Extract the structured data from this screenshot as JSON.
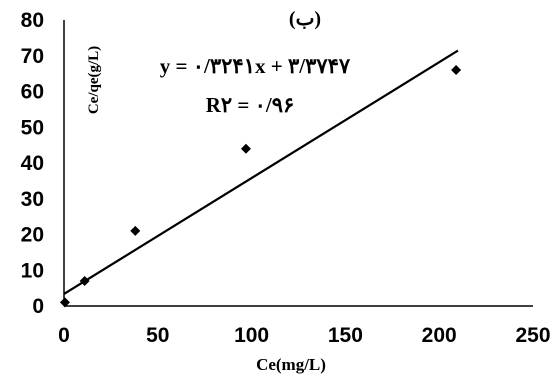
{
  "chart_data": {
    "type": "scatter",
    "title": "(ب)",
    "xlabel": "Ce(mg/L)",
    "ylabel": "Ce/qe(g/L)",
    "xlim": [
      0,
      250
    ],
    "ylim": [
      0,
      80
    ],
    "xticks": [
      "0",
      "50",
      "100",
      "150",
      "200",
      "250"
    ],
    "yticks": [
      "0",
      "10",
      "20",
      "30",
      "40",
      "50",
      "60",
      "70",
      "80"
    ],
    "grid": false,
    "marker": "diamond",
    "series": [
      {
        "x": [
          0.5,
          11,
          38,
          97,
          209
        ],
        "y": [
          1,
          7,
          21,
          44,
          66
        ]
      }
    ],
    "trendline": {
      "slope": 0.3241,
      "intercept": 3.3747
    },
    "annotations": {
      "equation": "y = ۰/۳۲۴۱x + ۳/۳۷۴۷",
      "r_squared": "R۲ = ۰/۹۶"
    }
  }
}
